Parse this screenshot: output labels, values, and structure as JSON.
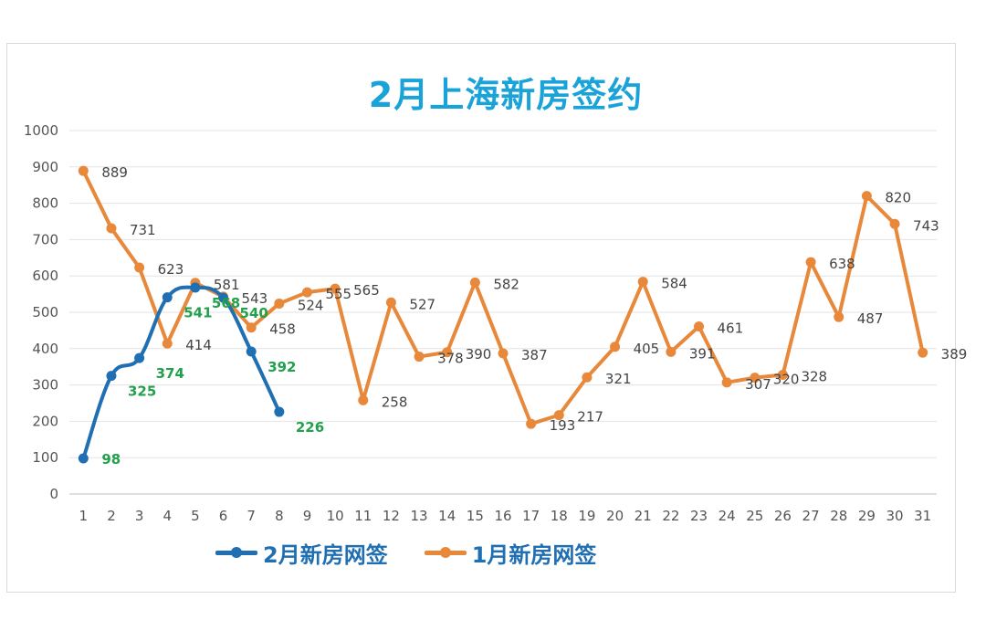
{
  "chart_data": {
    "type": "line",
    "title": "2月上海新房签约",
    "x": [
      1,
      2,
      3,
      4,
      5,
      6,
      7,
      8,
      9,
      10,
      11,
      12,
      13,
      14,
      15,
      16,
      17,
      18,
      19,
      20,
      21,
      22,
      23,
      24,
      25,
      26,
      27,
      28,
      29,
      30,
      31
    ],
    "ylim": [
      0,
      1000
    ],
    "yticks": [
      0,
      100,
      200,
      300,
      400,
      500,
      600,
      700,
      800,
      900,
      1000
    ],
    "grid": true,
    "legend_position": "bottom",
    "series": [
      {
        "name": "2月新房网签",
        "color": "#1f6fb2",
        "label_color": "#22a04b",
        "x": [
          1,
          2,
          3,
          4,
          5,
          6,
          7,
          8
        ],
        "values": [
          98,
          325,
          374,
          541,
          568,
          540,
          392,
          226
        ]
      },
      {
        "name": "1月新房网签",
        "color": "#e8883a",
        "label_color": "#444444",
        "x": [
          1,
          2,
          3,
          4,
          5,
          6,
          7,
          8,
          9,
          10,
          11,
          12,
          13,
          14,
          15,
          16,
          17,
          18,
          19,
          20,
          21,
          22,
          23,
          24,
          25,
          26,
          27,
          28,
          29,
          30,
          31
        ],
        "values": [
          889,
          731,
          623,
          414,
          581,
          543,
          458,
          524,
          555,
          565,
          258,
          527,
          378,
          390,
          582,
          387,
          193,
          217,
          321,
          405,
          584,
          391,
          461,
          307,
          320,
          328,
          638,
          487,
          820,
          743,
          389
        ]
      }
    ]
  }
}
